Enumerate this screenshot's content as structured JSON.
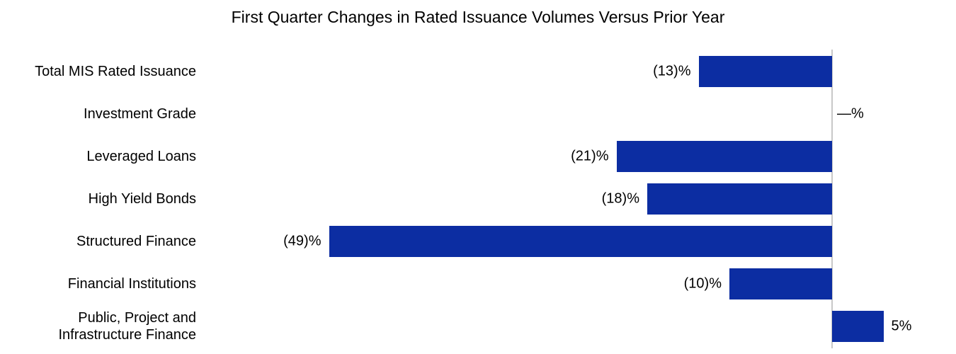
{
  "chart_data": {
    "type": "bar",
    "orientation": "horizontal",
    "title": "First Quarter Changes in Rated Issuance Volumes Versus Prior Year",
    "categories": [
      "Total MIS Rated Issuance",
      "Investment Grade",
      "Leveraged Loans",
      "High Yield Bonds",
      "Structured Finance",
      "Financial Institutions",
      "Public, Project and\nInfrastructure Finance"
    ],
    "values": [
      -13,
      0,
      -21,
      -18,
      -49,
      -10,
      5
    ],
    "value_labels": [
      "(13)%",
      "—%",
      "(21)%",
      "(18)%",
      "(49)%",
      "(10)%",
      "5%"
    ],
    "unit": "%",
    "xlim": [
      -49,
      5
    ],
    "grid": false,
    "legend": "none",
    "bar_color": "#0c2da2",
    "axis_line_color": "#c8c8c8",
    "text_color": "#000000"
  }
}
